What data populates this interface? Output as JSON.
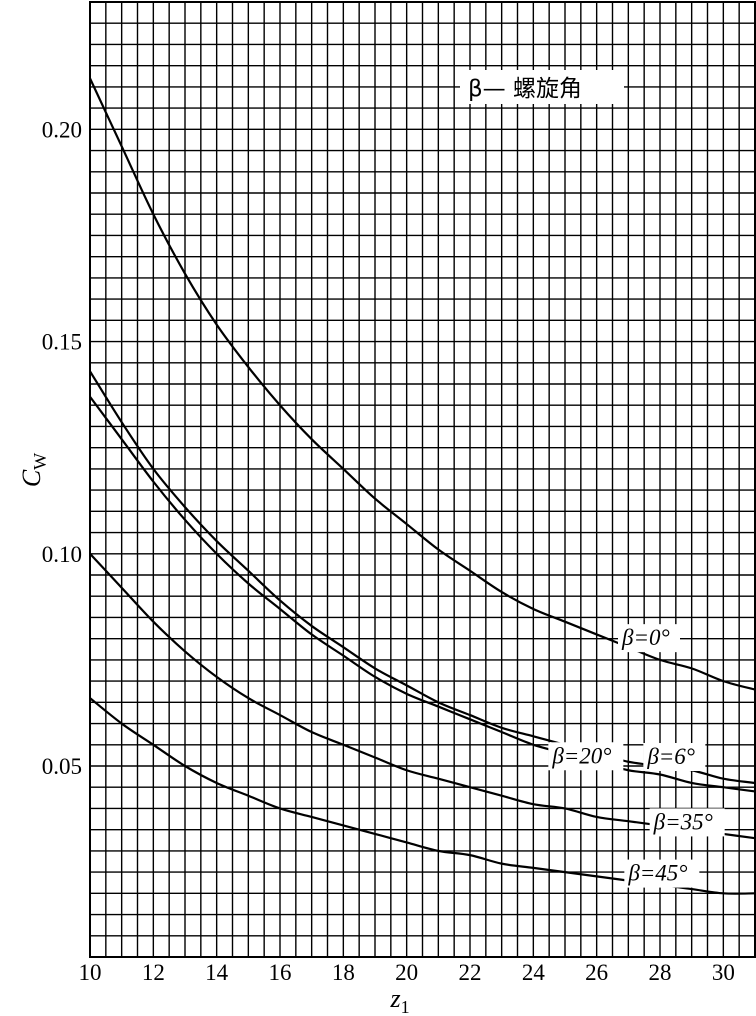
{
  "chart_data": {
    "type": "line",
    "title": "",
    "annotation": "β— 螺旋角",
    "xlabel": "z",
    "xlabel_sub": "1",
    "ylabel": "C",
    "ylabel_sub": "W",
    "xlim": [
      10,
      31
    ],
    "ylim": [
      0.005,
      0.23
    ],
    "x_ticks": [
      10,
      12,
      14,
      16,
      18,
      20,
      22,
      24,
      26,
      28,
      30
    ],
    "x_tick_labels": [
      "10",
      "12",
      "14",
      "16",
      "18",
      "20",
      "22",
      "24",
      "26",
      "28",
      "30"
    ],
    "y_ticks": [
      0.05,
      0.1,
      0.15,
      0.2
    ],
    "y_tick_labels": [
      "0.05",
      "0.10",
      "0.15",
      "0.20"
    ],
    "grid": true,
    "grid_minor_x": 0.5,
    "grid_minor_y": 0.005,
    "series": [
      {
        "name": "β=0°",
        "x": [
          10,
          11,
          12,
          13,
          14,
          15,
          16,
          17,
          18,
          19,
          20,
          21,
          22,
          23,
          24,
          25,
          26,
          27,
          28,
          29,
          30,
          31
        ],
        "y": [
          0.212,
          0.196,
          0.18,
          0.166,
          0.154,
          0.144,
          0.135,
          0.127,
          0.12,
          0.113,
          0.107,
          0.101,
          0.096,
          0.091,
          0.087,
          0.084,
          0.081,
          0.078,
          0.075,
          0.073,
          0.07,
          0.068
        ]
      },
      {
        "name": "β=6°",
        "x": [
          10,
          11,
          12,
          13,
          14,
          15,
          16,
          17,
          18,
          19,
          20,
          21,
          22,
          23,
          24,
          25,
          26,
          27,
          28,
          29,
          30,
          31
        ],
        "y": [
          0.143,
          0.131,
          0.12,
          0.111,
          0.103,
          0.096,
          0.089,
          0.083,
          0.078,
          0.073,
          0.069,
          0.065,
          0.062,
          0.059,
          0.057,
          0.055,
          0.053,
          0.051,
          0.05,
          0.049,
          0.047,
          0.046
        ]
      },
      {
        "name": "β=20°",
        "x": [
          10,
          11,
          12,
          13,
          14,
          15,
          16,
          17,
          18,
          19,
          20,
          21,
          22,
          23,
          24,
          25,
          26,
          27,
          28,
          29,
          30,
          31
        ],
        "y": [
          0.137,
          0.127,
          0.117,
          0.108,
          0.1,
          0.093,
          0.087,
          0.081,
          0.076,
          0.071,
          0.067,
          0.064,
          0.061,
          0.058,
          0.055,
          0.053,
          0.051,
          0.049,
          0.048,
          0.046,
          0.045,
          0.044
        ]
      },
      {
        "name": "β=35°",
        "x": [
          10,
          11,
          12,
          13,
          14,
          15,
          16,
          17,
          18,
          19,
          20,
          21,
          22,
          23,
          24,
          25,
          26,
          27,
          28,
          29,
          30,
          31
        ],
        "y": [
          0.1,
          0.092,
          0.084,
          0.077,
          0.071,
          0.066,
          0.062,
          0.058,
          0.055,
          0.052,
          0.049,
          0.047,
          0.045,
          0.043,
          0.041,
          0.04,
          0.038,
          0.037,
          0.036,
          0.035,
          0.034,
          0.033
        ]
      },
      {
        "name": "β=45°",
        "x": [
          10,
          11,
          12,
          13,
          14,
          15,
          16,
          17,
          18,
          19,
          20,
          21,
          22,
          23,
          24,
          25,
          26,
          27,
          28,
          29,
          30,
          31
        ],
        "y": [
          0.066,
          0.06,
          0.055,
          0.05,
          0.046,
          0.043,
          0.04,
          0.038,
          0.036,
          0.034,
          0.032,
          0.03,
          0.029,
          0.027,
          0.026,
          0.025,
          0.024,
          0.023,
          0.022,
          0.021,
          0.02,
          0.02
        ]
      }
    ]
  }
}
